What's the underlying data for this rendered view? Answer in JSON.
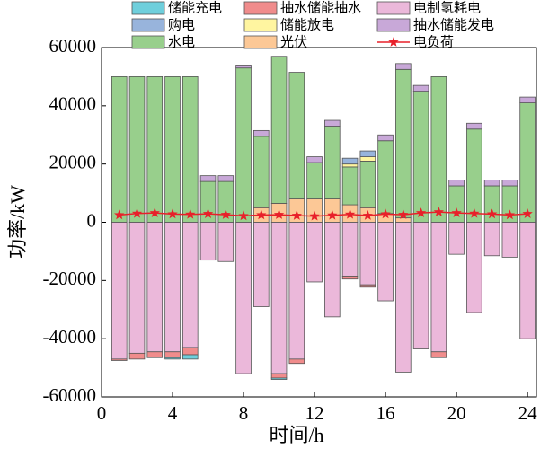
{
  "chart_data": {
    "type": "bar",
    "stacked": true,
    "xlabel": "时间/h",
    "ylabel": "功率/kW",
    "x": [
      1,
      2,
      3,
      4,
      5,
      6,
      7,
      8,
      9,
      10,
      11,
      12,
      13,
      14,
      15,
      16,
      17,
      18,
      19,
      20,
      21,
      22,
      23,
      24
    ],
    "xlim": [
      0,
      24.5
    ],
    "xticks": [
      0,
      4,
      8,
      12,
      16,
      20,
      24
    ],
    "ylim": [
      -60000,
      60000
    ],
    "yticks": [
      60000,
      40000,
      20000,
      0,
      -20000,
      -40000,
      -60000
    ],
    "series": [
      {
        "name": "储能充电",
        "color": "#6fcfdc",
        "values": [
          0,
          0,
          0,
          -500,
          -1500,
          0,
          0,
          0,
          0,
          -500,
          0,
          0,
          0,
          0,
          0,
          0,
          0,
          0,
          0,
          0,
          0,
          0,
          0,
          0
        ]
      },
      {
        "name": "抽水储能抽水",
        "color": "#f08c8c",
        "values": [
          -500,
          -2000,
          -2000,
          -2000,
          -2500,
          0,
          0,
          0,
          0,
          -1500,
          -1500,
          0,
          0,
          -1000,
          -800,
          0,
          0,
          0,
          -2000,
          0,
          0,
          0,
          0,
          0
        ]
      },
      {
        "name": "电制氢耗电",
        "color": "#ebb8da",
        "values": [
          -47000,
          -45000,
          -44500,
          -44500,
          -43000,
          -13000,
          -13500,
          -52000,
          -29000,
          -52000,
          -47000,
          -20500,
          -32500,
          -18500,
          -21500,
          -27000,
          -51500,
          -43500,
          -44500,
          -11000,
          -31000,
          -11500,
          -12000,
          -40000
        ]
      },
      {
        "name": "购电",
        "color": "#98b4dc",
        "values": [
          0,
          0,
          0,
          0,
          0,
          0,
          0,
          0,
          0,
          0,
          0,
          0,
          0,
          2000,
          2000,
          0,
          0,
          0,
          0,
          0,
          0,
          0,
          0,
          0
        ]
      },
      {
        "name": "储能放电",
        "color": "#fff5a0",
        "values": [
          0,
          0,
          0,
          0,
          0,
          0,
          0,
          0,
          0,
          0,
          0,
          0,
          0,
          1000,
          1500,
          0,
          0,
          0,
          0,
          0,
          0,
          0,
          0,
          0
        ]
      },
      {
        "name": "抽水储能发电",
        "color": "#c8a8d8",
        "values": [
          0,
          0,
          0,
          0,
          0,
          2000,
          2000,
          1000,
          2000,
          0,
          0,
          2000,
          2000,
          0,
          0,
          2000,
          2000,
          2000,
          0,
          2000,
          2000,
          2000,
          2000,
          2000
        ]
      },
      {
        "name": "水电",
        "color": "#98cf8c",
        "values": [
          50000,
          50000,
          50000,
          50000,
          50000,
          14000,
          14000,
          53000,
          24500,
          50500,
          43500,
          12500,
          25000,
          13000,
          16000,
          25000,
          51000,
          45000,
          50000,
          12500,
          32000,
          12500,
          12500,
          41000
        ]
      },
      {
        "name": "光伏",
        "color": "#fcc896",
        "values": [
          0,
          0,
          0,
          0,
          0,
          0,
          0,
          0,
          5000,
          6500,
          8000,
          8000,
          8000,
          6000,
          5000,
          3000,
          1500,
          0,
          0,
          0,
          0,
          0,
          0,
          0
        ]
      },
      {
        "name": "电负荷",
        "type": "line",
        "color": "#e8202a",
        "values": [
          2500,
          3000,
          3200,
          2800,
          2700,
          2900,
          2600,
          2200,
          2500,
          2600,
          2300,
          2100,
          2400,
          2700,
          2300,
          2800,
          2600,
          3200,
          3500,
          3200,
          3000,
          2800,
          2500,
          2900
        ]
      }
    ]
  }
}
